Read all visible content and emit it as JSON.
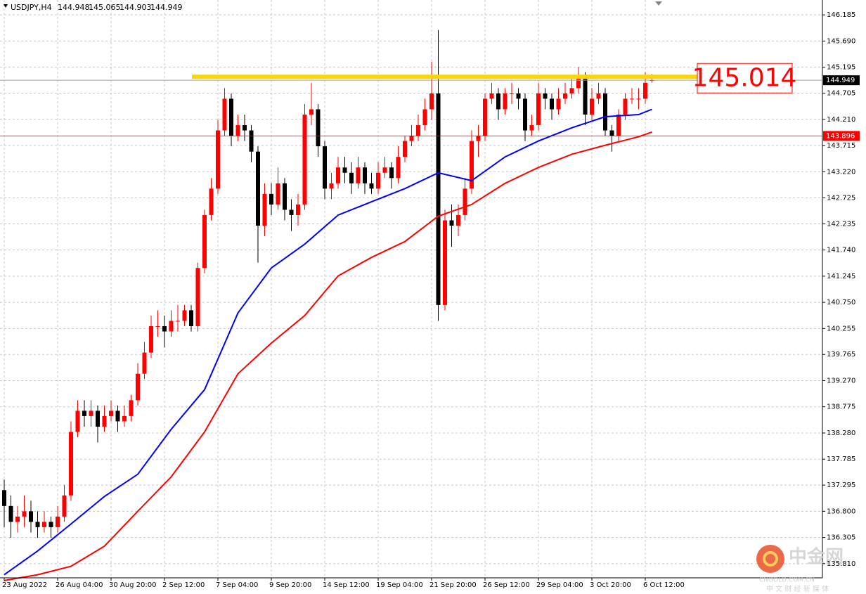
{
  "chart_data": {
    "type": "candlestick",
    "title": "USDJPY,H4",
    "header_values": [
      144.948,
      145.065,
      144.903,
      144.949
    ],
    "up_color": "#ff0000",
    "down_color": "#000000",
    "grid": true,
    "ylim": [
      135.542,
      146.466
    ],
    "yticks": [
      146.185,
      {
        "value": 145.69,
        "label": "145.690"
      },
      145.195,
      144.705,
      {
        "value": 144.21,
        "label": "144.210"
      },
      143.715,
      {
        "value": 143.22,
        "label": "143.220"
      },
      142.725,
      142.235,
      {
        "value": 141.74,
        "label": "141.740"
      },
      141.245,
      {
        "value": 140.75,
        "label": "140.750"
      },
      140.255,
      139.765,
      {
        "value": 139.27,
        "label": "139.270"
      },
      138.775,
      {
        "value": 138.28,
        "label": "138.280"
      },
      137.785,
      137.295,
      {
        "value": 136.8,
        "label": "136.800"
      },
      136.305,
      {
        "value": 135.81,
        "label": "135.810"
      }
    ],
    "categories": [
      "23 Aug 2022",
      null,
      null,
      null,
      null,
      null,
      null,
      null,
      "26 Aug 04:00",
      null,
      null,
      null,
      null,
      null,
      null,
      null,
      "30 Aug 20:00",
      null,
      null,
      null,
      null,
      null,
      null,
      null,
      "2 Sep 12:00",
      null,
      null,
      null,
      null,
      null,
      null,
      null,
      "7 Sep 04:00",
      null,
      null,
      null,
      null,
      null,
      null,
      null,
      "9 Sep 20:00",
      null,
      null,
      null,
      null,
      null,
      null,
      null,
      "14 Sep 12:00",
      null,
      null,
      null,
      null,
      null,
      null,
      null,
      "19 Sep 04:00",
      null,
      null,
      null,
      null,
      null,
      null,
      null,
      "21 Sep 20:00",
      null,
      null,
      null,
      null,
      null,
      null,
      null,
      "26 Sep 12:00",
      null,
      null,
      null,
      null,
      null,
      null,
      null,
      "29 Sep 04:00",
      null,
      null,
      null,
      null,
      null,
      null,
      null,
      "3 Oct 20:00",
      null,
      null,
      null,
      null,
      null,
      null,
      null,
      "6 Oct 12:00",
      null
    ],
    "ohlc": [
      [
        137.2,
        137.4,
        136.5,
        136.9
      ],
      [
        136.9,
        137.1,
        136.3,
        136.6
      ],
      [
        136.6,
        136.9,
        136.4,
        136.7
      ],
      [
        136.7,
        137.1,
        136.5,
        136.8
      ],
      [
        136.8,
        137.0,
        136.4,
        136.6
      ],
      [
        136.6,
        136.8,
        136.3,
        136.5
      ],
      [
        136.5,
        136.8,
        136.4,
        136.6
      ],
      [
        136.6,
        136.7,
        136.3,
        136.5
      ],
      [
        136.5,
        136.9,
        136.4,
        136.7
      ],
      [
        136.7,
        137.3,
        136.6,
        137.1
      ],
      [
        137.1,
        138.5,
        137.0,
        138.3
      ],
      [
        138.3,
        138.9,
        138.2,
        138.7
      ],
      [
        138.7,
        138.9,
        138.4,
        138.6
      ],
      [
        138.6,
        138.9,
        138.4,
        138.7
      ],
      [
        138.7,
        138.8,
        138.1,
        138.4
      ],
      [
        138.4,
        138.8,
        138.3,
        138.6
      ],
      [
        138.6,
        138.9,
        138.5,
        138.7
      ],
      [
        138.7,
        138.8,
        138.3,
        138.5
      ],
      [
        138.5,
        138.8,
        138.4,
        138.6
      ],
      [
        138.6,
        139.0,
        138.5,
        138.9
      ],
      [
        138.9,
        139.6,
        138.8,
        139.4
      ],
      [
        139.4,
        140.0,
        139.3,
        139.8
      ],
      [
        139.8,
        140.5,
        139.7,
        140.3
      ],
      [
        140.3,
        140.6,
        140.1,
        140.3
      ],
      [
        140.3,
        140.5,
        139.9,
        140.2
      ],
      [
        140.2,
        140.6,
        140.1,
        140.4
      ],
      [
        140.4,
        140.7,
        140.2,
        140.4
      ],
      [
        140.4,
        140.7,
        140.3,
        140.6
      ],
      [
        140.6,
        140.7,
        140.2,
        140.3
      ],
      [
        140.3,
        141.5,
        140.2,
        141.4
      ],
      [
        141.4,
        142.5,
        141.3,
        142.4
      ],
      [
        142.4,
        143.1,
        142.3,
        142.9
      ],
      [
        142.9,
        144.2,
        142.8,
        144.0
      ],
      [
        144.0,
        144.8,
        143.9,
        144.6
      ],
      [
        144.6,
        144.7,
        143.7,
        143.9
      ],
      [
        143.9,
        144.3,
        143.8,
        144.1
      ],
      [
        144.1,
        144.3,
        143.8,
        144.0
      ],
      [
        144.0,
        144.1,
        143.4,
        143.6
      ],
      [
        143.6,
        143.7,
        141.5,
        142.2
      ],
      [
        142.2,
        143.0,
        142.0,
        142.8
      ],
      [
        142.8,
        143.0,
        142.4,
        142.6
      ],
      [
        142.6,
        143.3,
        142.5,
        143.0
      ],
      [
        143.0,
        143.1,
        142.3,
        142.5
      ],
      [
        142.5,
        142.7,
        142.1,
        142.4
      ],
      [
        142.4,
        142.8,
        142.2,
        142.6
      ],
      [
        142.6,
        144.5,
        142.5,
        144.3
      ],
      [
        144.3,
        144.9,
        144.1,
        144.4
      ],
      [
        144.4,
        144.5,
        143.5,
        143.7
      ],
      [
        143.7,
        143.8,
        142.7,
        142.9
      ],
      [
        142.9,
        143.2,
        142.7,
        143.0
      ],
      [
        143.0,
        143.5,
        142.9,
        143.3
      ],
      [
        143.3,
        143.5,
        143.0,
        143.2
      ],
      [
        143.2,
        143.4,
        142.8,
        143.0
      ],
      [
        143.0,
        143.5,
        142.9,
        143.3
      ],
      [
        143.3,
        143.4,
        142.8,
        143.0
      ],
      [
        143.0,
        143.2,
        142.8,
        142.9
      ],
      [
        142.9,
        143.4,
        142.8,
        143.2
      ],
      [
        143.2,
        143.5,
        143.1,
        143.3
      ],
      [
        143.3,
        143.4,
        142.9,
        143.1
      ],
      [
        143.1,
        143.7,
        143.0,
        143.5
      ],
      [
        143.5,
        143.9,
        143.4,
        143.8
      ],
      [
        143.8,
        144.1,
        143.7,
        143.9
      ],
      [
        143.9,
        144.3,
        143.8,
        144.1
      ],
      [
        144.1,
        144.6,
        144.0,
        144.4
      ],
      [
        144.4,
        145.3,
        144.2,
        144.7
      ],
      [
        144.7,
        145.9,
        140.4,
        140.7
      ],
      [
        140.7,
        142.5,
        140.6,
        142.3
      ],
      [
        142.3,
        142.6,
        141.8,
        142.2
      ],
      [
        142.2,
        142.6,
        142.0,
        142.4
      ],
      [
        142.4,
        143.1,
        142.3,
        142.9
      ],
      [
        142.9,
        144.0,
        142.8,
        143.8
      ],
      [
        143.8,
        144.1,
        143.5,
        143.9
      ],
      [
        143.9,
        144.7,
        143.8,
        144.6
      ],
      [
        144.6,
        144.9,
        144.5,
        144.7
      ],
      [
        144.7,
        144.8,
        144.2,
        144.4
      ],
      [
        144.4,
        144.8,
        144.3,
        144.7
      ],
      [
        144.7,
        144.9,
        144.5,
        144.7
      ],
      [
        144.7,
        144.8,
        144.4,
        144.6
      ],
      [
        144.6,
        144.7,
        143.8,
        144.0
      ],
      [
        144.0,
        144.3,
        143.9,
        144.1
      ],
      [
        144.1,
        144.9,
        144.0,
        144.7
      ],
      [
        144.7,
        144.8,
        144.4,
        144.6
      ],
      [
        144.6,
        144.7,
        144.2,
        144.4
      ],
      [
        144.4,
        144.8,
        144.3,
        144.6
      ],
      [
        144.6,
        144.9,
        144.5,
        144.7
      ],
      [
        144.7,
        145.0,
        144.6,
        144.8
      ],
      [
        144.8,
        145.2,
        144.7,
        145.0
      ],
      [
        145.0,
        145.1,
        144.1,
        144.3
      ],
      [
        144.3,
        144.8,
        144.2,
        144.6
      ],
      [
        144.6,
        144.9,
        144.5,
        144.7
      ],
      [
        144.7,
        144.8,
        143.9,
        144.0
      ],
      [
        144.0,
        144.1,
        143.6,
        143.9
      ],
      [
        143.9,
        144.4,
        143.8,
        144.3
      ],
      [
        144.3,
        144.7,
        144.2,
        144.6
      ],
      [
        144.6,
        144.8,
        144.5,
        144.6
      ],
      [
        144.6,
        144.8,
        144.4,
        144.6
      ],
      [
        144.6,
        145.1,
        144.5,
        144.9
      ],
      [
        144.948,
        145.065,
        144.903,
        144.949
      ]
    ],
    "moving_averages": [
      {
        "color": "#0000ff",
        "x": [
          0,
          5,
          10,
          15,
          20,
          25,
          30,
          35,
          40,
          45,
          50,
          55,
          60,
          65,
          70,
          75,
          80,
          85,
          90,
          95,
          97
        ],
        "values": [
          135.6,
          136.05,
          136.56,
          137.08,
          137.5,
          138.35,
          139.1,
          140.55,
          141.4,
          141.85,
          142.4,
          142.65,
          142.9,
          143.2,
          143.05,
          143.5,
          143.8,
          144.05,
          144.26,
          144.3,
          144.4
        ]
      },
      {
        "color": "#ff0000",
        "x": [
          0,
          5,
          10,
          15,
          20,
          25,
          30,
          35,
          40,
          45,
          50,
          55,
          60,
          65,
          70,
          75,
          80,
          85,
          90,
          95,
          97
        ],
        "values": [
          135.49,
          135.6,
          135.76,
          136.14,
          136.8,
          137.45,
          138.3,
          139.4,
          139.98,
          140.5,
          141.25,
          141.6,
          141.9,
          142.38,
          142.6,
          143.0,
          143.3,
          143.55,
          143.72,
          143.88,
          143.97
        ]
      }
    ],
    "resistance": {
      "value": 145.014,
      "color": "#ffd400"
    },
    "bid_line": {
      "value": 144.949,
      "color": "#a0a0a0"
    },
    "level_line": {
      "value": 143.896,
      "color": "#ff0000"
    },
    "watermark": {
      "brand": "中金网",
      "url": "CNGOLD.COM.CN",
      "tagline": "中 文 财 经 新 媒 体"
    }
  }
}
